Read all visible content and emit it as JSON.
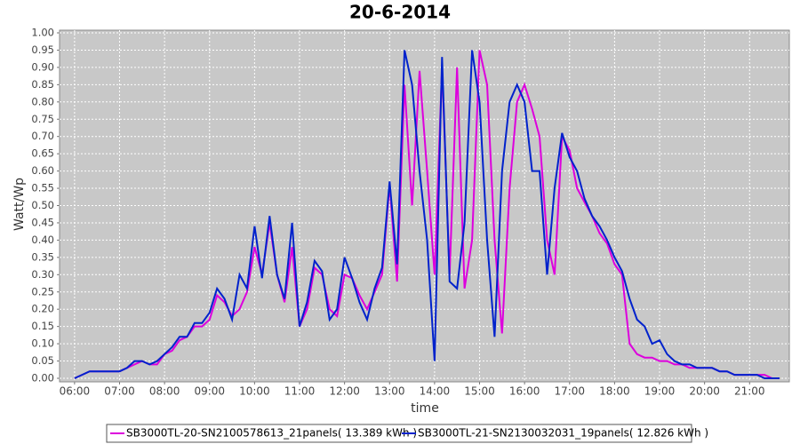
{
  "chart_data": {
    "type": "line",
    "title": "20-6-2014",
    "x_label": "time",
    "y_label": "Watt/Wp",
    "x": [
      360,
      370,
      380,
      390,
      400,
      410,
      420,
      430,
      440,
      450,
      460,
      470,
      480,
      490,
      500,
      510,
      520,
      530,
      540,
      550,
      560,
      570,
      580,
      590,
      600,
      610,
      620,
      630,
      640,
      650,
      660,
      670,
      680,
      690,
      700,
      710,
      720,
      730,
      740,
      750,
      760,
      770,
      780,
      790,
      800,
      810,
      820,
      830,
      840,
      850,
      860,
      870,
      880,
      890,
      900,
      910,
      920,
      930,
      940,
      950,
      960,
      970,
      980,
      990,
      1000,
      1010,
      1020,
      1030,
      1040,
      1050,
      1060,
      1070,
      1080,
      1090,
      1100,
      1110,
      1120,
      1130,
      1140,
      1150,
      1160,
      1170,
      1180,
      1190,
      1200,
      1210,
      1220,
      1230,
      1240,
      1250,
      1260,
      1270,
      1280,
      1290,
      1300
    ],
    "series": [
      {
        "name": "SB3000TL-20-SN2100578613_21panels( 13.389 kWh )",
        "color": "#dd00dd",
        "values": [
          0.0,
          0.01,
          0.02,
          0.02,
          0.02,
          0.02,
          0.02,
          0.03,
          0.04,
          0.05,
          0.04,
          0.04,
          0.07,
          0.08,
          0.11,
          0.12,
          0.15,
          0.15,
          0.17,
          0.24,
          0.22,
          0.18,
          0.2,
          0.25,
          0.38,
          0.3,
          0.45,
          0.3,
          0.22,
          0.38,
          0.15,
          0.2,
          0.32,
          0.3,
          0.2,
          0.18,
          0.3,
          0.29,
          0.24,
          0.2,
          0.25,
          0.3,
          0.56,
          0.28,
          0.85,
          0.5,
          0.89,
          0.6,
          0.3,
          0.9,
          0.3,
          0.9,
          0.26,
          0.4,
          0.95,
          0.85,
          0.4,
          0.13,
          0.55,
          0.8,
          0.85,
          0.78,
          0.7,
          0.4,
          0.3,
          0.7,
          0.66,
          0.55,
          0.51,
          0.47,
          0.42,
          0.39,
          0.33,
          0.3,
          0.1,
          0.07,
          0.06,
          0.06,
          0.05,
          0.05,
          0.04,
          0.04,
          0.03,
          0.03,
          0.03,
          0.03,
          0.02,
          0.02,
          0.01,
          0.01,
          0.01,
          0.01,
          0.01,
          0.0,
          0.0
        ]
      },
      {
        "name": "SB3000TL-21-SN2130032031_19panels( 12.826 kWh )",
        "color": "#0022cc",
        "values": [
          0.0,
          0.01,
          0.02,
          0.02,
          0.02,
          0.02,
          0.02,
          0.03,
          0.05,
          0.05,
          0.04,
          0.05,
          0.07,
          0.09,
          0.12,
          0.12,
          0.16,
          0.16,
          0.19,
          0.26,
          0.23,
          0.17,
          0.3,
          0.26,
          0.44,
          0.29,
          0.47,
          0.3,
          0.23,
          0.45,
          0.15,
          0.22,
          0.34,
          0.31,
          0.17,
          0.2,
          0.35,
          0.29,
          0.22,
          0.17,
          0.26,
          0.32,
          0.57,
          0.33,
          0.95,
          0.85,
          0.6,
          0.4,
          0.05,
          0.93,
          0.28,
          0.26,
          0.45,
          0.95,
          0.8,
          0.4,
          0.12,
          0.6,
          0.8,
          0.85,
          0.8,
          0.6,
          0.6,
          0.3,
          0.55,
          0.71,
          0.64,
          0.6,
          0.52,
          0.47,
          0.44,
          0.4,
          0.35,
          0.31,
          0.23,
          0.17,
          0.15,
          0.1,
          0.11,
          0.07,
          0.05,
          0.04,
          0.04,
          0.03,
          0.03,
          0.03,
          0.02,
          0.02,
          0.01,
          0.01,
          0.01,
          0.01,
          0.0,
          0.0,
          0.0
        ]
      }
    ],
    "xlim": [
      340,
      1313
    ],
    "xticks": [
      {
        "value": 360,
        "label": "06:00"
      },
      {
        "value": 420,
        "label": "07:00"
      },
      {
        "value": 480,
        "label": "08:00"
      },
      {
        "value": 540,
        "label": "09:00"
      },
      {
        "value": 600,
        "label": "10:00"
      },
      {
        "value": 660,
        "label": "11:00"
      },
      {
        "value": 720,
        "label": "12:00"
      },
      {
        "value": 780,
        "label": "13:00"
      },
      {
        "value": 840,
        "label": "14:00"
      },
      {
        "value": 900,
        "label": "15:00"
      },
      {
        "value": 960,
        "label": "16:00"
      },
      {
        "value": 1020,
        "label": "17:00"
      },
      {
        "value": 1080,
        "label": "18:00"
      },
      {
        "value": 1140,
        "label": "19:00"
      },
      {
        "value": 1200,
        "label": "20:00"
      },
      {
        "value": 1260,
        "label": "21:00"
      }
    ],
    "ylim": [
      0,
      1
    ],
    "yticks": [
      {
        "value": 0,
        "label": "0.00"
      },
      {
        "value": 0.05,
        "label": "0.05"
      },
      {
        "value": 0.1,
        "label": "0.10"
      },
      {
        "value": 0.15,
        "label": "0.15"
      },
      {
        "value": 0.2,
        "label": "0.20"
      },
      {
        "value": 0.25,
        "label": "0.25"
      },
      {
        "value": 0.3,
        "label": "0.30"
      },
      {
        "value": 0.35,
        "label": "0.35"
      },
      {
        "value": 0.4,
        "label": "0.40"
      },
      {
        "value": 0.45,
        "label": "0.45"
      },
      {
        "value": 0.5,
        "label": "0.50"
      },
      {
        "value": 0.55,
        "label": "0.55"
      },
      {
        "value": 0.6,
        "label": "0.60"
      },
      {
        "value": 0.65,
        "label": "0.65"
      },
      {
        "value": 0.7,
        "label": "0.70"
      },
      {
        "value": 0.75,
        "label": "0.75"
      },
      {
        "value": 0.8,
        "label": "0.80"
      },
      {
        "value": 0.85,
        "label": "0.85"
      },
      {
        "value": 0.9,
        "label": "0.90"
      },
      {
        "value": 0.95,
        "label": "0.95"
      },
      {
        "value": 1,
        "label": "1.00"
      }
    ],
    "grid": true
  }
}
